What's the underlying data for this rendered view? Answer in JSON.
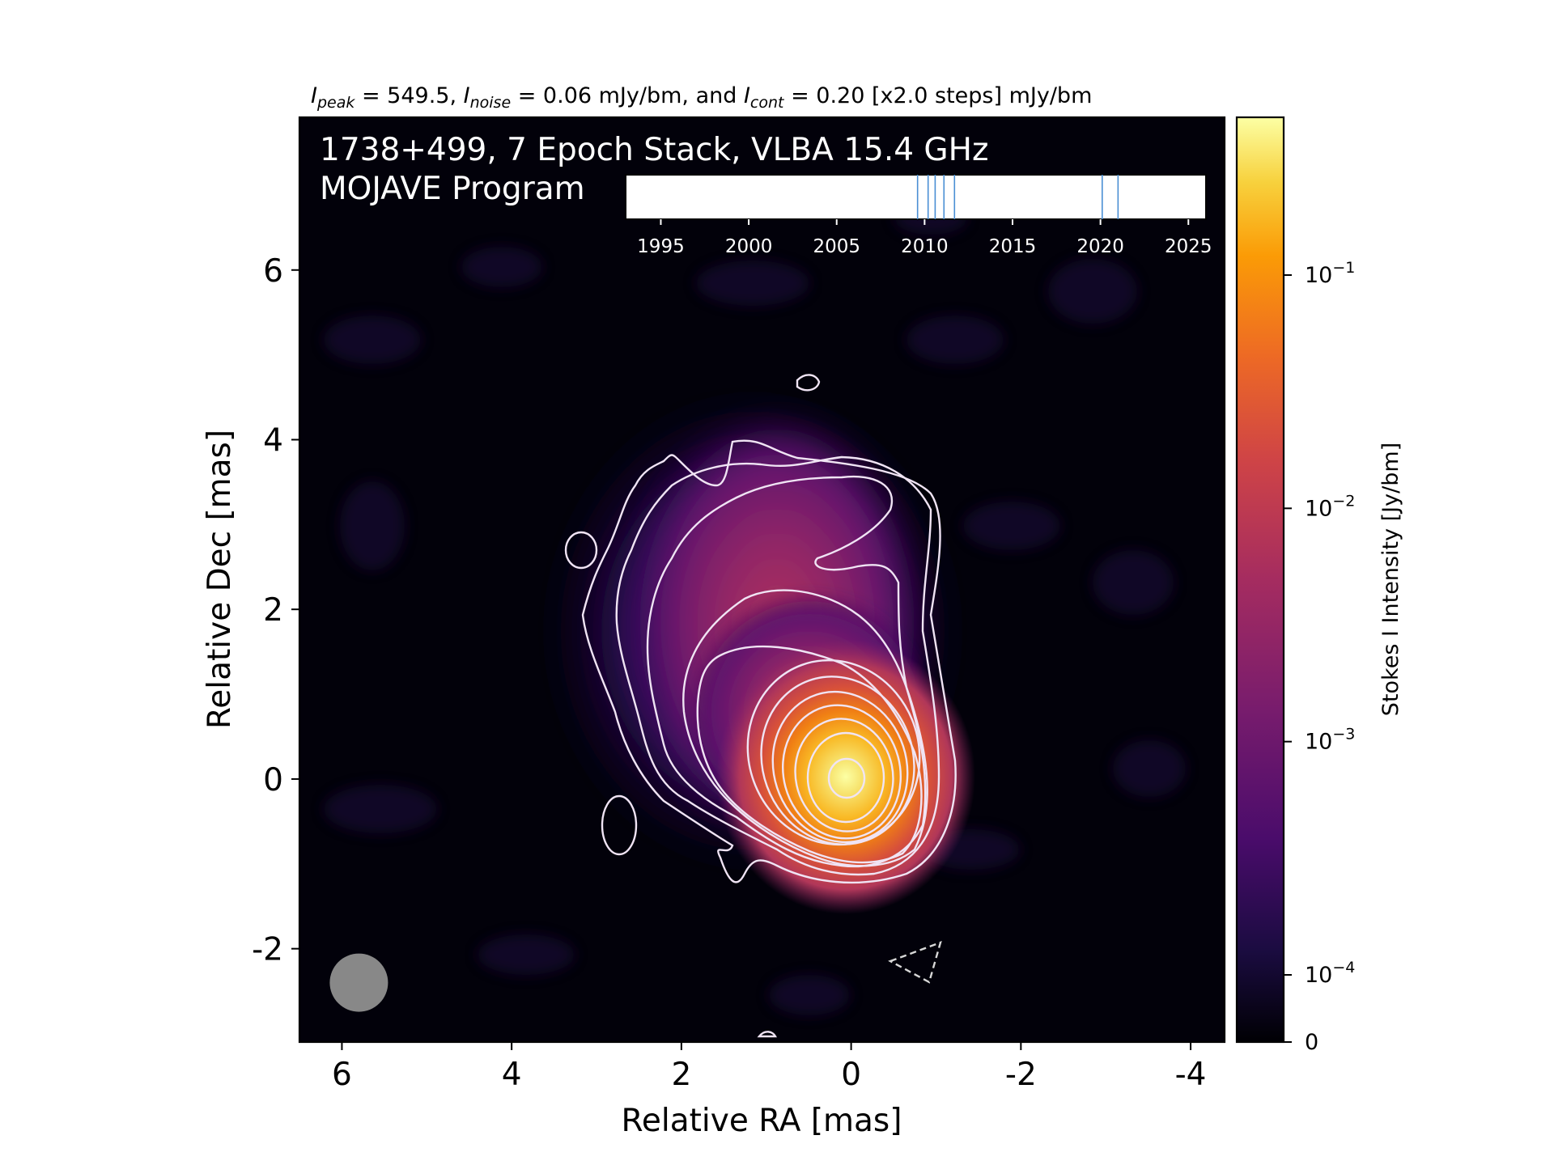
{
  "chart_data": {
    "type": "heatmap",
    "title_parts": {
      "peak_sym": "I",
      "peak_sub": "peak",
      "peak_val": " = 549.5, ",
      "noise_sym": "I",
      "noise_sub": "noise",
      "noise_val": " = 0.06 mJy/bm, and ",
      "cont_sym": "I",
      "cont_sub": "cont",
      "cont_val": " = 0.20 [x2.0 steps] mJy/bm"
    },
    "overlay_title": "1738+499, 7 Epoch Stack, VLBA 15.4 GHz",
    "overlay_subtitle": "MOJAVE Program",
    "xlabel": "Relative RA [mas]",
    "ylabel": "Relative Dec [mas]",
    "xlim": [
      6.5,
      -4.4
    ],
    "ylim": [
      -3.1,
      7.8
    ],
    "xticks": [
      6,
      4,
      2,
      0,
      -2,
      -4
    ],
    "xtick_labels": [
      "6",
      "4",
      "2",
      "0",
      "-2",
      "-4"
    ],
    "yticks": [
      6,
      4,
      2,
      0,
      -2
    ],
    "ytick_labels": [
      "6",
      "4",
      "2",
      "0",
      "-2"
    ],
    "colormap": "inferno",
    "colorbar": {
      "label": "Stokes I Intensity [Jy/bm]",
      "scale": "log",
      "tick_values": [
        0.1,
        0.01,
        0.001,
        0.0001,
        0
      ],
      "tick_bases": [
        "10",
        "10",
        "10",
        "10",
        "0"
      ],
      "tick_exponents": [
        "−1",
        "−2",
        "−3",
        "−4",
        ""
      ]
    },
    "core": {
      "ra": 0.0,
      "dec": 0.0,
      "peak_mJy_per_beam": 549.5
    },
    "beam": {
      "ra": 5.8,
      "dec": -2.4,
      "major_mas": 0.7,
      "minor_mas": 0.7
    },
    "epoch_timeline": {
      "xlim": [
        1993,
        2026
      ],
      "ticks": [
        1995,
        2000,
        2005,
        2010,
        2015,
        2020,
        2025
      ],
      "tick_labels": [
        "1995",
        "2000",
        "2005",
        "2010",
        "2015",
        "2020",
        "2025"
      ],
      "epochs": [
        2009.6,
        2010.2,
        2010.6,
        2011.1,
        2011.7,
        2020.1,
        2021.0
      ],
      "line_color": "#4a8fd4"
    },
    "contour_levels_mJy": [
      0.2,
      0.4,
      0.8,
      1.6,
      3.2,
      6.4,
      12.8,
      25.6,
      51.2,
      102.4,
      204.8,
      409.6
    ],
    "colors": {
      "contour": "#f0e4f4",
      "negative_contour": "#d8d8d8",
      "beam": "#888888"
    }
  }
}
